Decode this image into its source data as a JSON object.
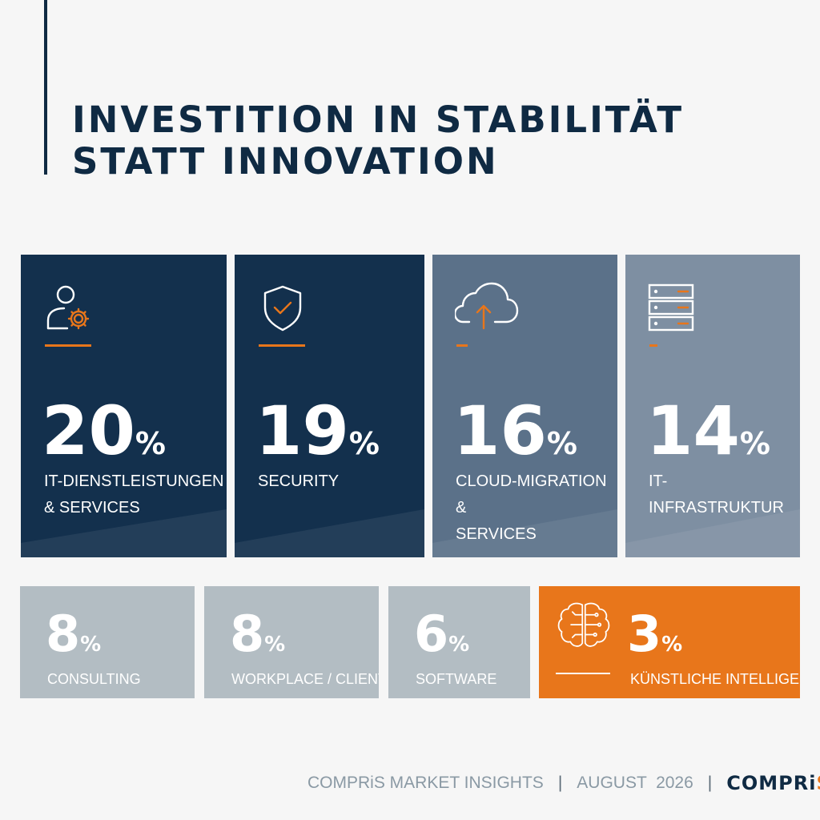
{
  "title": {
    "line1": "INVESTITION IN STABILITÄT",
    "line2": "STATT INNOVATION"
  },
  "colors": {
    "navy": "#13304d",
    "slate": "#5b7189",
    "slate_light": "#7e8fa2",
    "grey": "#b3bdc3",
    "orange": "#e8761b"
  },
  "big_tiles": [
    {
      "value": "20",
      "unit": "%",
      "label_line1": "IT-DIENSTLEISTUNGEN",
      "label_line2": "& SERVICES",
      "icon": "user-gear-icon"
    },
    {
      "value": "19",
      "unit": "%",
      "label_line1": "SECURITY",
      "label_line2": "",
      "icon": "shield-check-icon"
    },
    {
      "value": "16",
      "unit": "%",
      "label_line1": "CLOUD-MIGRATION &",
      "label_line2": "SERVICES",
      "icon": "cloud-upload-icon"
    },
    {
      "value": "14",
      "unit": "%",
      "label_line1": "IT-INFRASTRUKTUR",
      "label_line2": "",
      "icon": "server-rack-icon"
    }
  ],
  "small_tiles": [
    {
      "value": "8",
      "unit": "%",
      "label": "CONSULTING"
    },
    {
      "value": "8",
      "unit": "%",
      "label": "WORKPLACE / CLIENTS"
    },
    {
      "value": "6",
      "unit": "%",
      "label": "SOFTWARE"
    },
    {
      "value": "3",
      "unit": "%",
      "label": "KÜNSTLICHE INTELLIGENZ",
      "icon": "brain-circuit-icon"
    }
  ],
  "footer": {
    "source": "COMPRiS MARKET INSIGHTS",
    "separator": "|",
    "date": "AUGUST  2026",
    "logo_main": "COMPRi",
    "logo_accent": "S"
  }
}
